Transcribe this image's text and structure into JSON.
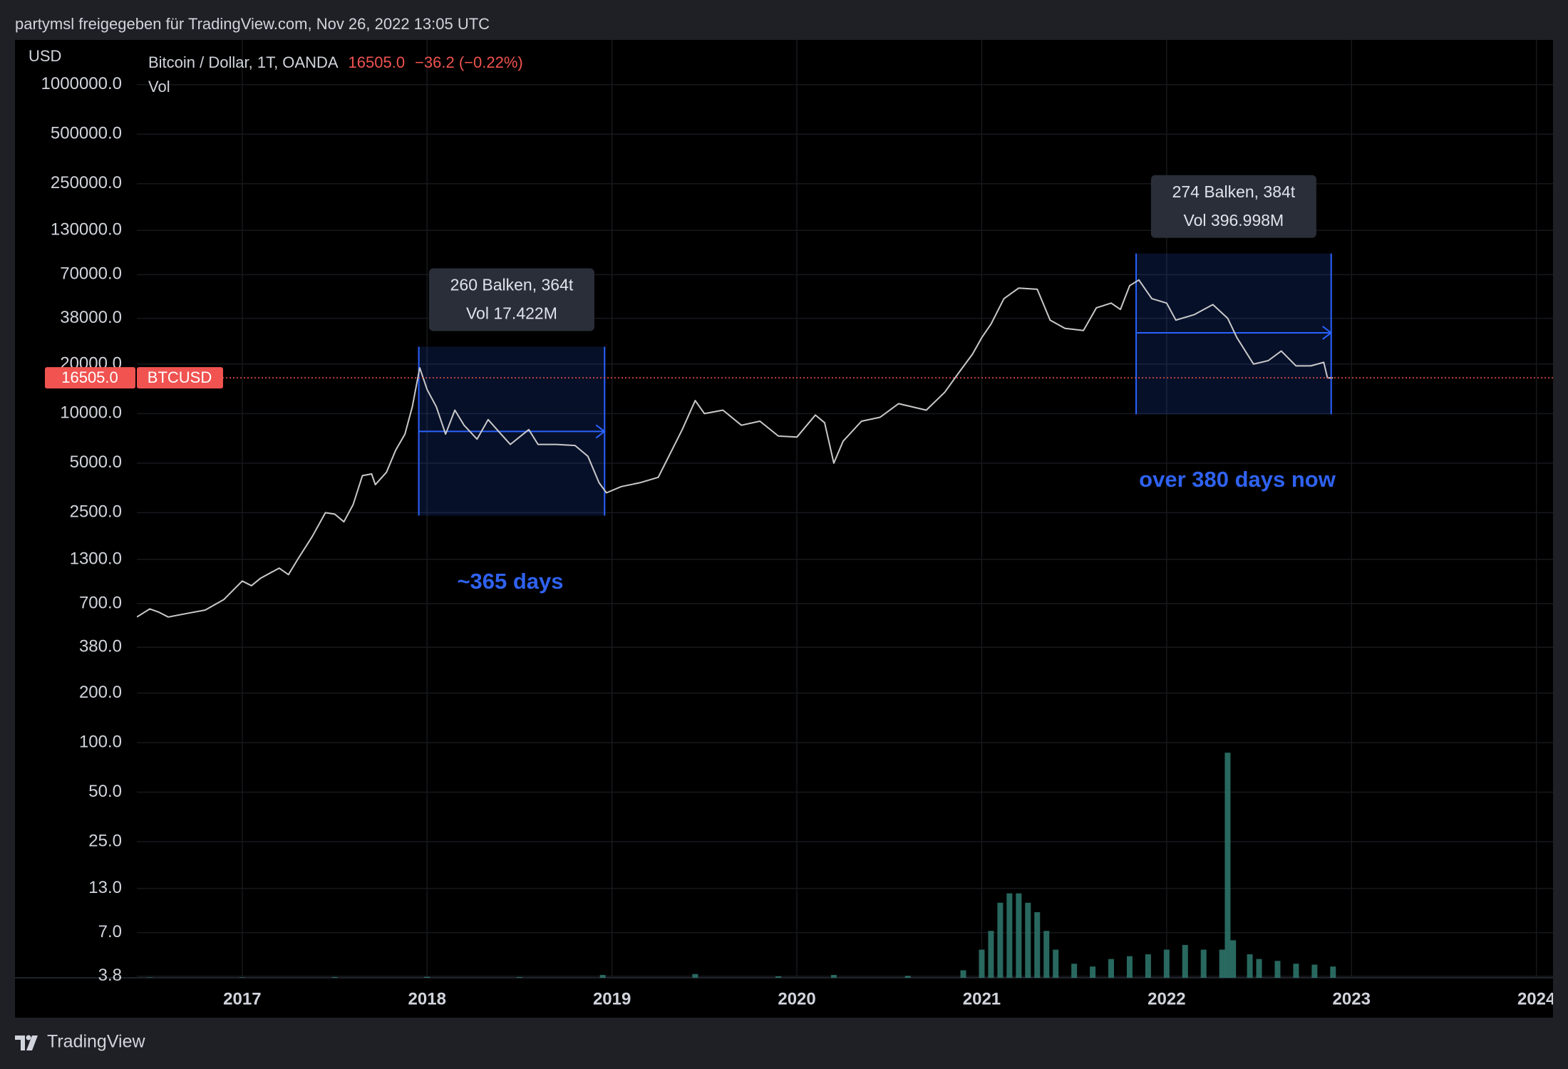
{
  "chart_data": {
    "type": "line",
    "title": "partymsl freigegeben für TradingView.com, Nov 26, 2022 13:05 UTC",
    "currency": "USD",
    "symbol": "BTCUSD",
    "last": {
      "value": 16505,
      "label": "16505.0"
    },
    "change": "−36.2 (−0.22%)",
    "brand": "TradingView",
    "log_scale": true,
    "grid": true,
    "xlim": [
      2016.43,
      2024.09
    ],
    "xticks": [
      2017,
      2018,
      2019,
      2020,
      2021,
      2022,
      2023,
      2024
    ],
    "ylim": [
      3.72,
      1870000
    ],
    "yticks": [
      {
        "value": 1000000,
        "label": "1000000.0"
      },
      {
        "value": 500000,
        "label": "500000.0"
      },
      {
        "value": 250000,
        "label": "250000.0"
      },
      {
        "value": 130000,
        "label": "130000.0"
      },
      {
        "value": 70000,
        "label": "70000.0"
      },
      {
        "value": 38000,
        "label": "38000.0"
      },
      {
        "value": 20000,
        "label": "20000.0"
      },
      {
        "value": 10000,
        "label": "10000.0"
      },
      {
        "value": 5000,
        "label": "5000.0"
      },
      {
        "value": 2500,
        "label": "2500.0"
      },
      {
        "value": 1300,
        "label": "1300.0"
      },
      {
        "value": 700,
        "label": "700.0"
      },
      {
        "value": 380,
        "label": "380.0"
      },
      {
        "value": 200,
        "label": "200.0"
      },
      {
        "value": 100,
        "label": "100.0"
      },
      {
        "value": 50,
        "label": "50.0"
      },
      {
        "value": 25,
        "label": "25.0"
      },
      {
        "value": 13,
        "label": "13.0"
      },
      {
        "value": 7,
        "label": "7.0"
      },
      {
        "value": 3.8,
        "label": "3.8"
      }
    ],
    "y2lim": [
      0,
      100
    ],
    "series": [
      {
        "name": "Bitcoin / Dollar, 1T, OANDA",
        "color": "#c9c9c9",
        "x": [
          2016.43,
          2016.5,
          2016.55,
          2016.6,
          2016.7,
          2016.8,
          2016.9,
          2017.0,
          2017.05,
          2017.1,
          2017.2,
          2017.25,
          2017.3,
          2017.38,
          2017.45,
          2017.5,
          2017.55,
          2017.6,
          2017.65,
          2017.7,
          2017.72,
          2017.78,
          2017.83,
          2017.88,
          2017.92,
          2017.96,
          2018.0,
          2018.05,
          2018.1,
          2018.15,
          2018.2,
          2018.27,
          2018.33,
          2018.4,
          2018.45,
          2018.55,
          2018.6,
          2018.7,
          2018.8,
          2018.87,
          2018.93,
          2018.97,
          2019.05,
          2019.15,
          2019.25,
          2019.3,
          2019.38,
          2019.45,
          2019.5,
          2019.6,
          2019.7,
          2019.8,
          2019.9,
          2020.0,
          2020.1,
          2020.15,
          2020.2,
          2020.25,
          2020.35,
          2020.45,
          2020.55,
          2020.7,
          2020.8,
          2020.88,
          2020.95,
          2021.0,
          2021.05,
          2021.12,
          2021.2,
          2021.3,
          2021.37,
          2021.45,
          2021.55,
          2021.62,
          2021.7,
          2021.75,
          2021.8,
          2021.85,
          2021.92,
          2022.0,
          2022.05,
          2022.15,
          2022.25,
          2022.33,
          2022.38,
          2022.47,
          2022.55,
          2022.62,
          2022.7,
          2022.78,
          2022.85,
          2022.87,
          2022.9
        ],
        "values": [
          580,
          650,
          620,
          580,
          610,
          640,
          740,
          960,
          900,
          1000,
          1150,
          1050,
          1300,
          1800,
          2500,
          2450,
          2200,
          2800,
          4200,
          4300,
          3700,
          4400,
          6000,
          7500,
          11000,
          19000,
          14000,
          11000,
          7500,
          10500,
          8500,
          7000,
          9200,
          7500,
          6500,
          8000,
          6500,
          6500,
          6400,
          5500,
          3800,
          3300,
          3600,
          3800,
          4100,
          5300,
          8000,
          12000,
          10000,
          10500,
          8500,
          9000,
          7300,
          7200,
          9800,
          8800,
          5000,
          6800,
          9000,
          9500,
          11500,
          10500,
          13500,
          18000,
          23000,
          29000,
          35000,
          50000,
          58000,
          57000,
          37000,
          33000,
          32000,
          44000,
          47000,
          43000,
          60000,
          65000,
          50000,
          47000,
          37000,
          40000,
          46000,
          38000,
          29000,
          20000,
          21000,
          24000,
          19500,
          19500,
          20500,
          16500,
          16505
        ]
      },
      {
        "name": "Vol",
        "color": "#2f7a70",
        "axis": "y2",
        "x": [
          2016.5,
          2017.0,
          2017.5,
          2018.0,
          2018.5,
          2018.95,
          2019.45,
          2019.9,
          2020.2,
          2020.6,
          2020.9,
          2021.0,
          2021.05,
          2021.1,
          2021.15,
          2021.2,
          2021.25,
          2021.3,
          2021.35,
          2021.4,
          2021.5,
          2021.6,
          2021.7,
          2021.8,
          2021.9,
          2022.0,
          2022.1,
          2022.2,
          2022.3,
          2022.33,
          2022.36,
          2022.45,
          2022.5,
          2022.6,
          2022.7,
          2022.8,
          2022.9
        ],
        "values": [
          0.05,
          0.05,
          0.08,
          0.1,
          0.08,
          0.3,
          0.4,
          0.15,
          0.3,
          0.2,
          0.8,
          3,
          5,
          8,
          9,
          9,
          8,
          7,
          5,
          3,
          1.5,
          1.2,
          2,
          2.3,
          2.5,
          3,
          3.5,
          3,
          3,
          24,
          4,
          2.5,
          2,
          1.8,
          1.5,
          1.4,
          1.2
        ]
      }
    ],
    "ranges": [
      {
        "x": [
          2017.955,
          2018.96
        ],
        "y": [
          2400,
          25500
        ],
        "arrow_y": 7790,
        "label": "260 Balken, 364t",
        "vol_label": "Vol 17.422M",
        "note": "~365 days"
      },
      {
        "x": [
          2021.835,
          2022.89
        ],
        "y": [
          9900,
          94000
        ],
        "arrow_y": 31000,
        "label": "274 Balken, 384t",
        "vol_label": "Vol 396.998M",
        "note": "over 380 days now"
      }
    ]
  }
}
